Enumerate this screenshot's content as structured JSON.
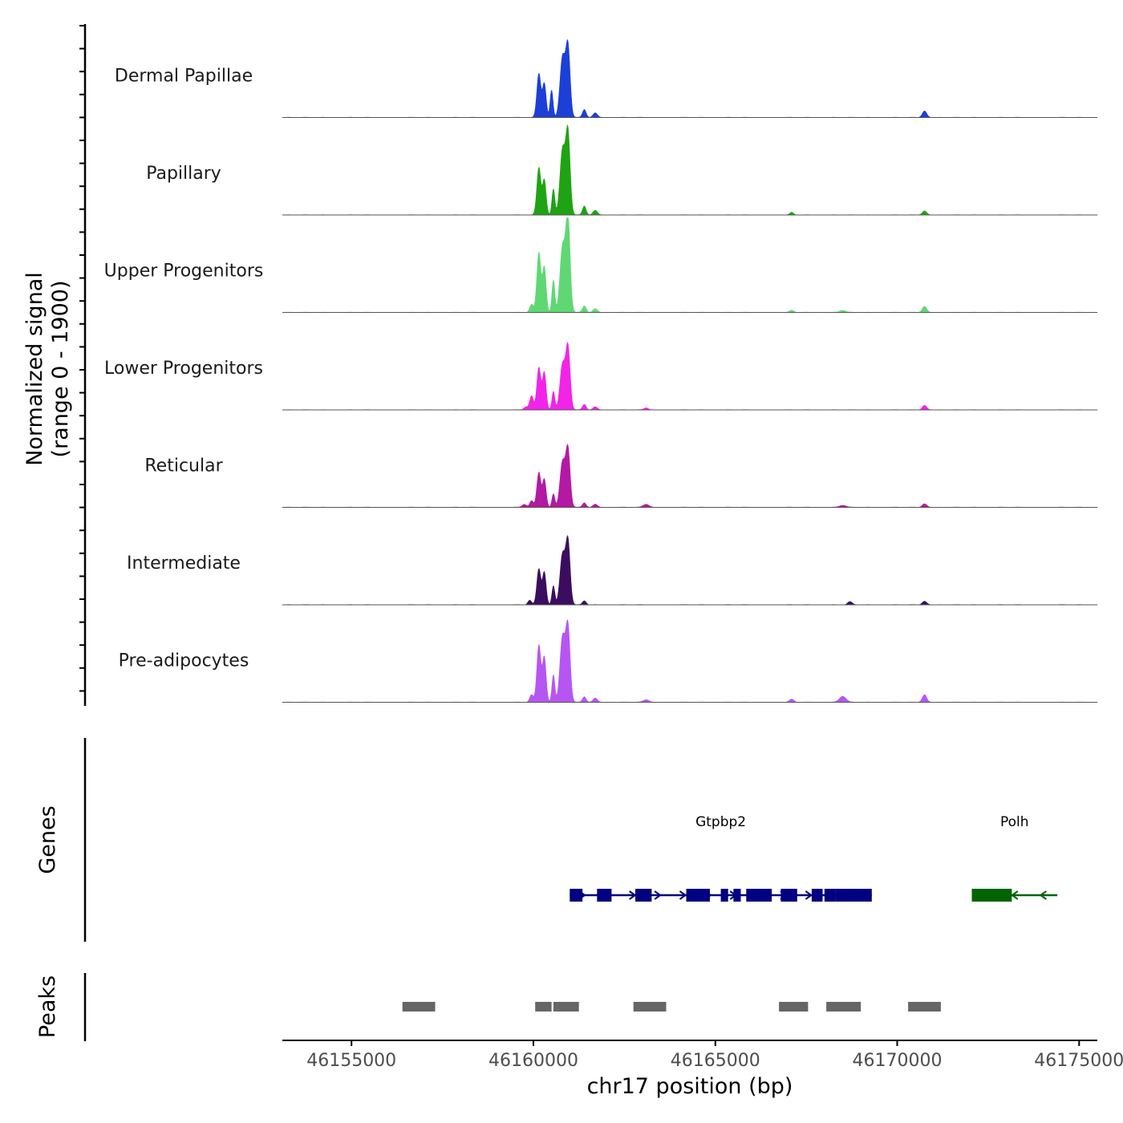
{
  "chart_data": {
    "type": "area",
    "title": "",
    "ylabel_line1": "Normalized signal",
    "ylabel_line2": "(range 0 - 1900)",
    "xlabel": "chr17 position (bp)",
    "x_ticks": [
      "46155000",
      "46160000",
      "46165000",
      "46170000",
      "46175000"
    ],
    "xlim": [
      46153100,
      46175500
    ],
    "ylim": [
      0,
      1900
    ],
    "tracks_label": "Normalized signal",
    "series": [
      {
        "name": "Dermal Papillae",
        "color": "#1c3fd8",
        "peaks": [
          [
            46160150,
            880,
            55
          ],
          [
            46160300,
            680,
            50
          ],
          [
            46160500,
            550,
            40
          ],
          [
            46160800,
            1200,
            70
          ],
          [
            46160950,
            1420,
            60
          ],
          [
            46161400,
            160,
            50
          ],
          [
            46161700,
            90,
            60
          ],
          [
            46170750,
            130,
            60
          ]
        ]
      },
      {
        "name": "Papillary",
        "color": "#1fa314",
        "peaks": [
          [
            46160150,
            950,
            55
          ],
          [
            46160300,
            700,
            50
          ],
          [
            46160550,
            520,
            40
          ],
          [
            46160800,
            1300,
            70
          ],
          [
            46160950,
            1650,
            60
          ],
          [
            46161400,
            180,
            50
          ],
          [
            46161700,
            90,
            60
          ],
          [
            46167100,
            50,
            50
          ],
          [
            46170750,
            80,
            60
          ]
        ]
      },
      {
        "name": "Upper Progenitors",
        "color": "#5fd874",
        "peaks": [
          [
            46159950,
            160,
            50
          ],
          [
            46160150,
            1200,
            55
          ],
          [
            46160300,
            900,
            50
          ],
          [
            46160550,
            650,
            40
          ],
          [
            46160800,
            1300,
            70
          ],
          [
            46160950,
            1900,
            60
          ],
          [
            46161400,
            130,
            50
          ],
          [
            46161700,
            70,
            60
          ],
          [
            46167100,
            40,
            60
          ],
          [
            46168500,
            40,
            80
          ],
          [
            46170750,
            120,
            60
          ]
        ]
      },
      {
        "name": "Lower Progenitors",
        "color": "#f224e8",
        "peaks": [
          [
            46159800,
            60,
            60
          ],
          [
            46159950,
            280,
            50
          ],
          [
            46160150,
            850,
            55
          ],
          [
            46160300,
            750,
            50
          ],
          [
            46160550,
            370,
            40
          ],
          [
            46160800,
            900,
            70
          ],
          [
            46160950,
            1250,
            60
          ],
          [
            46161400,
            110,
            50
          ],
          [
            46161700,
            60,
            60
          ],
          [
            46163100,
            40,
            60
          ],
          [
            46170750,
            90,
            60
          ]
        ]
      },
      {
        "name": "Reticular",
        "color": "#b419a3",
        "peaks": [
          [
            46159750,
            60,
            60
          ],
          [
            46159950,
            130,
            50
          ],
          [
            46160150,
            700,
            55
          ],
          [
            46160300,
            560,
            50
          ],
          [
            46160550,
            270,
            40
          ],
          [
            46160800,
            900,
            70
          ],
          [
            46160950,
            1160,
            60
          ],
          [
            46161400,
            90,
            50
          ],
          [
            46161700,
            60,
            60
          ],
          [
            46163100,
            60,
            80
          ],
          [
            46168500,
            40,
            90
          ],
          [
            46170750,
            70,
            60
          ]
        ]
      },
      {
        "name": "Intermediate",
        "color": "#3b0d5e",
        "peaks": [
          [
            46159900,
            90,
            50
          ],
          [
            46160150,
            720,
            55
          ],
          [
            46160300,
            650,
            50
          ],
          [
            46160550,
            380,
            40
          ],
          [
            46160800,
            1000,
            70
          ],
          [
            46160950,
            1270,
            60
          ],
          [
            46161400,
            80,
            50
          ],
          [
            46168700,
            60,
            60
          ],
          [
            46170750,
            70,
            60
          ]
        ]
      },
      {
        "name": "Pre-adipocytes",
        "color": "#b656f2",
        "peaks": [
          [
            46159950,
            150,
            50
          ],
          [
            46160150,
            1150,
            55
          ],
          [
            46160300,
            900,
            50
          ],
          [
            46160550,
            550,
            40
          ],
          [
            46160800,
            1300,
            70
          ],
          [
            46160950,
            1500,
            60
          ],
          [
            46161400,
            110,
            50
          ],
          [
            46161700,
            80,
            60
          ],
          [
            46163100,
            50,
            80
          ],
          [
            46167100,
            60,
            60
          ],
          [
            46168500,
            120,
            90
          ],
          [
            46170750,
            150,
            60
          ]
        ]
      }
    ],
    "genes_label": "Genes",
    "genes": [
      {
        "name": "Gtpbp2",
        "strand": "+",
        "color": "#000080",
        "start": 46161000,
        "end": 46169300,
        "exons": [
          [
            46161000,
            46161350
          ],
          [
            46161750,
            46162150
          ],
          [
            46162800,
            46163250
          ],
          [
            46164200,
            46164850
          ],
          [
            46165150,
            46165350
          ],
          [
            46165500,
            46165700
          ],
          [
            46165850,
            46166550
          ],
          [
            46166800,
            46167250
          ],
          [
            46167650,
            46167950
          ],
          [
            46168000,
            46168300
          ],
          [
            46168300,
            46168600
          ],
          [
            46168600,
            46169300
          ]
        ]
      },
      {
        "name": "Polh",
        "strand": "-",
        "color": "#006400",
        "start": 46172050,
        "end": 46174400,
        "exons": [
          [
            46172050,
            46173150
          ]
        ]
      }
    ],
    "peaks_label": "Peaks",
    "peak_regions": [
      [
        46156400,
        46157300
      ],
      [
        46160050,
        46160500
      ],
      [
        46160550,
        46161250
      ],
      [
        46162750,
        46163650
      ],
      [
        46166750,
        46167550
      ],
      [
        46168050,
        46169000
      ],
      [
        46170300,
        46171200
      ]
    ]
  }
}
